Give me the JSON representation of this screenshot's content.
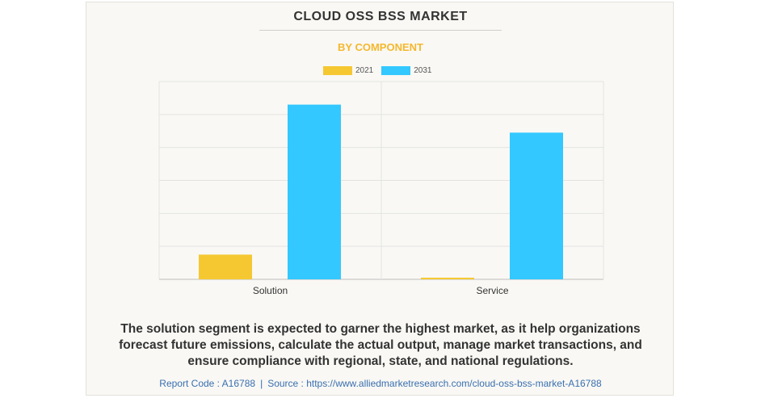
{
  "header": {
    "title": "CLOUD OSS BSS MARKET",
    "subtitle": "BY COMPONENT"
  },
  "colors": {
    "series_2021": "#f5c832",
    "series_2031": "#33c8ff",
    "title_accent": "#f5b82e"
  },
  "chart_data": {
    "type": "bar",
    "title": "CLOUD OSS BSS MARKET",
    "subtitle": "BY COMPONENT",
    "categories": [
      "Solution",
      "Service"
    ],
    "series": [
      {
        "name": "2021",
        "values": [
          0.75,
          0.05
        ]
      },
      {
        "name": "2031",
        "values": [
          5.3,
          4.45
        ]
      }
    ],
    "xlabel": "",
    "ylabel": "",
    "ylim": [
      0,
      6
    ],
    "grid": true,
    "legend": "top-center"
  },
  "caption": "The solution segment is expected to garner the highest market, as it help organizations forecast future emissions, calculate the actual output, manage market transactions, and ensure compliance with regional, state, and national regulations.",
  "footer": {
    "report_code": "Report Code : A16788",
    "separator": "|",
    "source": "Source : https://www.alliedmarketresearch.com/cloud-oss-bss-market-A16788"
  }
}
